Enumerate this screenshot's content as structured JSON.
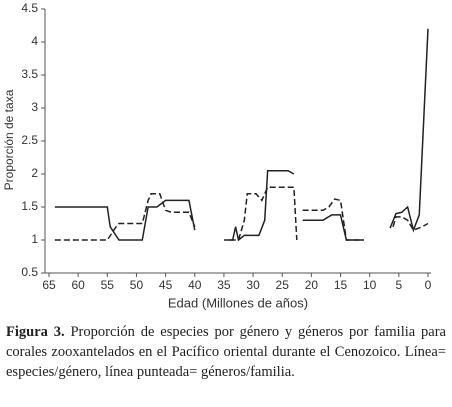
{
  "chart_data": {
    "type": "line",
    "ylabel": "Proporción de taxa",
    "xlabel": "Edad (Millones de años)",
    "xlim": [
      65,
      0
    ],
    "xticks": [
      65,
      60,
      55,
      50,
      45,
      40,
      35,
      30,
      25,
      20,
      15,
      10,
      5,
      0
    ],
    "ylim": [
      0.5,
      4.5
    ],
    "yticks": [
      0.5,
      1,
      1.5,
      2,
      2.5,
      3,
      3.5,
      4,
      4.5
    ],
    "grid": false,
    "series": [
      {
        "style": "solid",
        "color": "#222222",
        "x": [
          64,
          55,
          54.5,
          53,
          49,
          48,
          46.5,
          45,
          41,
          40,
          37,
          35,
          33.5,
          33,
          32.5,
          31.5,
          29,
          28,
          27.5,
          24,
          23,
          22.2,
          21.5,
          18,
          16.5,
          15,
          14,
          11,
          8.5,
          6.5,
          5.5,
          4.5,
          3.5,
          2.5,
          1.5,
          0
        ],
        "values": [
          1.5,
          1.5,
          1.2,
          1.0,
          1.0,
          1.5,
          1.5,
          1.6,
          1.6,
          1.15,
          null,
          1.0,
          1.0,
          1.2,
          1.0,
          1.07,
          1.07,
          1.3,
          2.05,
          2.05,
          2.0,
          null,
          1.3,
          1.3,
          1.38,
          1.38,
          1.0,
          1.0,
          null,
          1.18,
          1.4,
          1.42,
          1.5,
          1.15,
          1.38,
          4.2
        ]
      },
      {
        "style": "dashed",
        "color": "#222222",
        "x": [
          64,
          55,
          53.5,
          53,
          49,
          48,
          47.5,
          46,
          45,
          44,
          41,
          40,
          37,
          34,
          32.5,
          31.5,
          31,
          29.5,
          28.5,
          27.5,
          24,
          23,
          22.5,
          22.2,
          21.5,
          18,
          17,
          16,
          15,
          14,
          11,
          8.5,
          6,
          5.5,
          4.5,
          3.5,
          2.5,
          1,
          0
        ],
        "values": [
          1.0,
          1.0,
          1.2,
          1.25,
          1.25,
          1.6,
          1.7,
          1.7,
          1.45,
          1.42,
          1.42,
          1.2,
          null,
          1.0,
          1.0,
          1.3,
          1.7,
          1.7,
          1.6,
          1.8,
          1.8,
          1.8,
          1.0,
          null,
          1.45,
          1.45,
          1.5,
          1.62,
          1.6,
          1.0,
          1.0,
          null,
          1.2,
          1.35,
          1.35,
          1.3,
          1.15,
          1.2,
          1.25
        ]
      }
    ]
  },
  "caption": {
    "label": "Figura 3.",
    "text": "Proporción de especies por género y géneros por familia para corales zooxantelados en el Pacífico oriental durante el Cenozoico. Línea= especies/género, línea punteada= géneros/familia."
  }
}
